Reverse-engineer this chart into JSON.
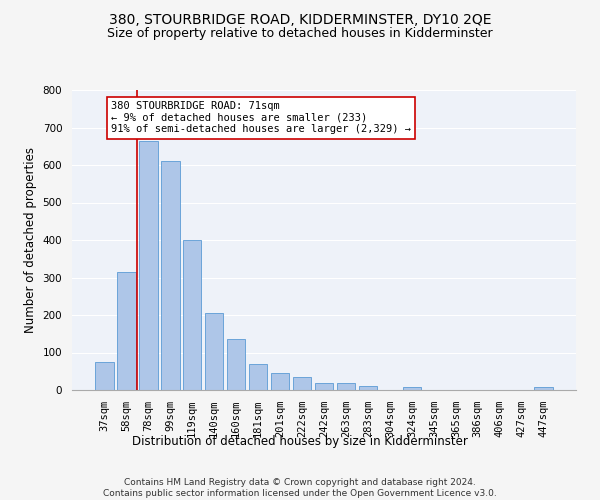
{
  "title": "380, STOURBRIDGE ROAD, KIDDERMINSTER, DY10 2QE",
  "subtitle": "Size of property relative to detached houses in Kidderminster",
  "xlabel": "Distribution of detached houses by size in Kidderminster",
  "ylabel": "Number of detached properties",
  "categories": [
    "37sqm",
    "58sqm",
    "78sqm",
    "99sqm",
    "119sqm",
    "140sqm",
    "160sqm",
    "181sqm",
    "201sqm",
    "222sqm",
    "242sqm",
    "263sqm",
    "283sqm",
    "304sqm",
    "324sqm",
    "345sqm",
    "365sqm",
    "386sqm",
    "406sqm",
    "427sqm",
    "447sqm"
  ],
  "values": [
    75,
    315,
    665,
    610,
    400,
    205,
    137,
    70,
    45,
    35,
    20,
    18,
    12,
    0,
    7,
    0,
    0,
    0,
    0,
    0,
    7
  ],
  "bar_color": "#aec6e8",
  "bar_edge_color": "#5b9bd5",
  "vline_x_index": 1.5,
  "vline_color": "#cc0000",
  "annotation_text": "380 STOURBRIDGE ROAD: 71sqm\n← 9% of detached houses are smaller (233)\n91% of semi-detached houses are larger (2,329) →",
  "annotation_box_color": "#ffffff",
  "annotation_box_edge": "#cc0000",
  "ylim": [
    0,
    800
  ],
  "yticks": [
    0,
    100,
    200,
    300,
    400,
    500,
    600,
    700,
    800
  ],
  "background_color": "#eef2f9",
  "grid_color": "#ffffff",
  "footer": "Contains HM Land Registry data © Crown copyright and database right 2024.\nContains public sector information licensed under the Open Government Licence v3.0.",
  "title_fontsize": 10,
  "subtitle_fontsize": 9,
  "xlabel_fontsize": 8.5,
  "ylabel_fontsize": 8.5,
  "tick_fontsize": 7.5,
  "annotation_fontsize": 7.5,
  "footer_fontsize": 6.5
}
